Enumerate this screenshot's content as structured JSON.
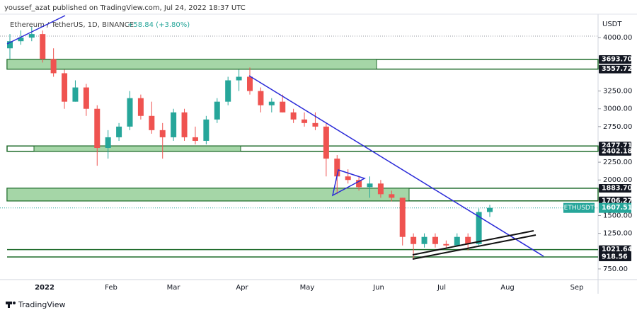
{
  "header": {
    "byline": "youssef_azat published on TradingView.com, Jul 24, 2022 18:37 UTC",
    "footer": "TradingView"
  },
  "chart_data": {
    "type": "candlestick",
    "symbol": "Ethereum / TetherUS, 1D, BINANCE",
    "change": "+58.84 (+3.80%)",
    "currency": "USDT",
    "up_color": "#26a69a",
    "down_color": "#ef5350",
    "open": [
      3850,
      3950,
      4000,
      4050,
      3700,
      3500,
      3100,
      3300,
      3000,
      2450,
      2600,
      2750,
      3150,
      2900,
      2700,
      2600,
      2950,
      2600,
      2550,
      2850,
      3100,
      3400,
      3450,
      3250,
      3050,
      3100,
      2950,
      2850,
      2800,
      2750,
      2300,
      2050,
      2000,
      1900,
      1950,
      1800,
      1750,
      1200,
      1100,
      1200,
      1100,
      1080,
      1200,
      1100,
      1550
    ],
    "high": [
      4050,
      4100,
      4150,
      4100,
      3850,
      3550,
      3400,
      3350,
      3050,
      2700,
      2800,
      3250,
      3200,
      3100,
      2800,
      3000,
      3000,
      2750,
      2900,
      3150,
      3450,
      3550,
      3580,
      3300,
      3150,
      3200,
      3000,
      2950,
      2950,
      2800,
      2350,
      2150,
      2050,
      2050,
      2000,
      1850,
      1750,
      1250,
      1250,
      1250,
      1150,
      1250,
      1250,
      1600,
      1650
    ],
    "low": [
      3700,
      3900,
      3950,
      3650,
      3450,
      3000,
      3100,
      2900,
      2200,
      2300,
      2550,
      2700,
      2850,
      2650,
      2300,
      2550,
      2550,
      2500,
      2500,
      2800,
      3050,
      3250,
      3200,
      2950,
      2950,
      2950,
      2800,
      2750,
      2700,
      2050,
      1800,
      1950,
      1850,
      1750,
      1750,
      1700,
      1080,
      880,
      1050,
      1050,
      1050,
      1070,
      1010,
      1080,
      1480
    ],
    "close": [
      3950,
      4000,
      4050,
      3700,
      3500,
      3100,
      3300,
      3000,
      2450,
      2600,
      2750,
      3150,
      2900,
      2700,
      2600,
      2950,
      2600,
      2550,
      2850,
      3100,
      3400,
      3450,
      3250,
      3050,
      3100,
      2950,
      2850,
      2800,
      2750,
      2300,
      2050,
      2000,
      1900,
      1950,
      1800,
      1750,
      1200,
      1100,
      1200,
      1100,
      1080,
      1200,
      1100,
      1550,
      1607.51
    ],
    "ylim": [
      600,
      4330
    ],
    "yticks": [
      {
        "value": 4000,
        "label": "4000.00"
      },
      {
        "value": 3250,
        "label": "3250.00"
      },
      {
        "value": 3000,
        "label": "3000.00"
      },
      {
        "value": 2750,
        "label": "2750.00"
      },
      {
        "value": 2250,
        "label": "2250.00"
      },
      {
        "value": 2000,
        "label": "2000.00"
      },
      {
        "value": 1500,
        "label": "1500.00"
      },
      {
        "value": 1250,
        "label": "1250.00"
      },
      {
        "value": 750,
        "label": "750.00"
      }
    ],
    "xticks": [
      "2022",
      "Feb",
      "Mar",
      "Apr",
      "May",
      "Jun",
      "Jul",
      "Aug",
      "Sep"
    ],
    "levels": [
      {
        "value": 3693.7,
        "label": "3693.70"
      },
      {
        "value": 3557.72,
        "label": "3557.72"
      },
      {
        "value": 2477.71,
        "label": "2477.71"
      },
      {
        "value": 2402.18,
        "label": "2402.18"
      },
      {
        "value": 1883.7,
        "label": "1883.70"
      },
      {
        "value": 1706.27,
        "label": "1706.27"
      },
      {
        "value": 1021.64,
        "label": "1021.64"
      },
      {
        "value": 918.56,
        "label": "918.56"
      }
    ],
    "last": {
      "name": "ETHUSDT",
      "value": 1607.51,
      "color": "#26a69a"
    }
  }
}
